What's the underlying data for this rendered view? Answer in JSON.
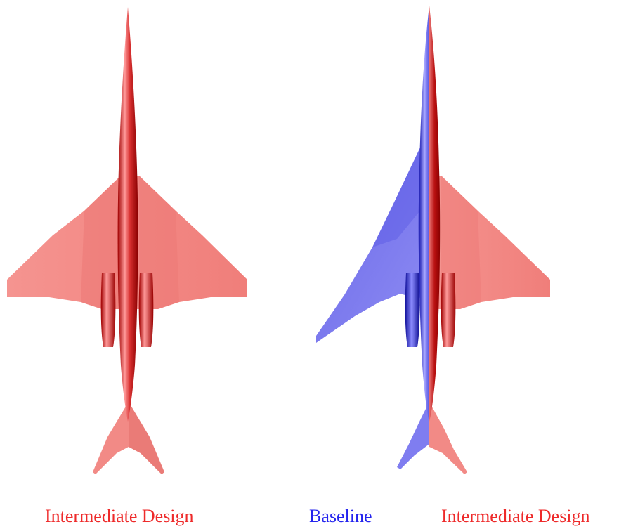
{
  "colors": {
    "intermediate": "#ee2a2a",
    "baseline": "#2424ee",
    "intermediate_surface": "#f38a86",
    "intermediate_body_dark": "#a00000",
    "intermediate_body_light": "#ff9090",
    "baseline_surface": "#7a78ee",
    "baseline_body_dark": "#0b0ba8",
    "baseline_body_light": "#a8a8ff"
  },
  "captions": {
    "left": "Intermediate Design",
    "baseline": "Baseline",
    "right": "Intermediate Design"
  }
}
